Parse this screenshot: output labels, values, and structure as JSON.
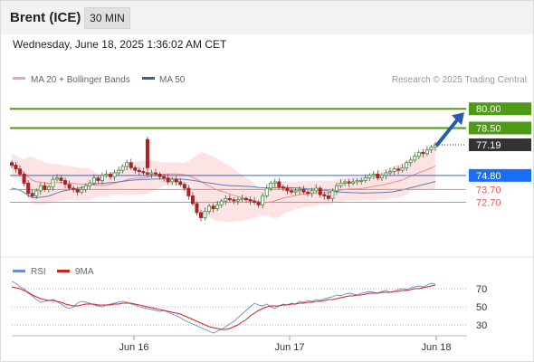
{
  "header": {
    "title": "Brent (ICE)",
    "timeframe": "30 MIN",
    "datetime": "Wednesday, June 18, 2025 1:36:02 AM CET"
  },
  "legend": {
    "ma20": "MA 20 + Bollinger Bands",
    "ma50": "MA 50",
    "source": "Research © 2025 Trading Central"
  },
  "rsi_legend": {
    "rsi": "RSI",
    "ma9": "9MA"
  },
  "colors": {
    "resistance": "#4f9a16",
    "current": "#333333",
    "pivot": "#1a6ef5",
    "support": "#f08080",
    "bull": "#3a8f3a",
    "bear": "#b02020",
    "ma50": "#5b7fb5",
    "rsi": "#6a8fd0",
    "rsi_ma": "#d42020",
    "arrow": "#2b5ba8"
  },
  "chart_data": [
    {
      "type": "candlestick",
      "title": "Brent (ICE)",
      "timeframe": "30 MIN",
      "x_ticks": [
        "Jun 16",
        "Jun 17",
        "Jun 18"
      ],
      "ylim": [
        68.5,
        81.5
      ],
      "levels": [
        {
          "value": 80.0,
          "label": "80.00",
          "kind": "resistance"
        },
        {
          "value": 78.5,
          "label": "78.50",
          "kind": "resistance"
        },
        {
          "value": 77.19,
          "label": "77.19",
          "kind": "current"
        },
        {
          "value": 74.8,
          "label": "74.80",
          "kind": "pivot"
        },
        {
          "value": 73.7,
          "label": "73.70",
          "kind": "support"
        },
        {
          "value": 72.7,
          "label": "72.70",
          "kind": "support"
        }
      ],
      "series": [
        {
          "name": "MA 20 + Bollinger Bands"
        },
        {
          "name": "MA 50"
        }
      ],
      "closes": [
        75.6,
        75.3,
        74.9,
        74.2,
        73.4,
        73.2,
        73.6,
        74.0,
        73.7,
        73.9,
        74.5,
        74.6,
        74.4,
        74.1,
        73.8,
        73.7,
        73.5,
        73.7,
        74.0,
        74.2,
        74.6,
        74.4,
        74.8,
        74.9,
        74.7,
        75.0,
        75.2,
        75.5,
        75.8,
        75.4,
        75.2,
        75.1,
        75.0,
        74.9,
        75.0,
        74.9,
        74.7,
        74.6,
        74.3,
        74.5,
        74.3,
        74.1,
        73.8,
        73.2,
        72.6,
        71.9,
        71.5,
        72.0,
        72.4,
        72.2,
        72.5,
        72.8,
        73.0,
        72.9,
        72.8,
        72.9,
        73.0,
        72.9,
        72.8,
        72.7,
        72.5,
        73.2,
        73.8,
        74.2,
        74.3,
        73.9,
        73.8,
        73.6,
        73.5,
        73.6,
        73.7,
        73.5,
        73.4,
        73.6,
        73.8,
        73.3,
        73.2,
        73.0,
        73.6,
        74.0,
        74.2,
        74.3,
        74.2,
        74.3,
        74.4,
        74.4,
        74.6,
        74.8,
        74.9,
        74.6,
        74.8,
        75.0,
        75.1,
        75.3,
        75.2,
        75.4,
        75.8,
        76.0,
        76.3,
        76.6,
        76.5,
        76.8,
        77.0,
        77.19
      ]
    },
    {
      "type": "line",
      "title": "RSI",
      "series": [
        {
          "name": "RSI"
        },
        {
          "name": "9MA"
        }
      ],
      "levels": [
        70,
        50,
        30
      ],
      "ylim": [
        20,
        80
      ],
      "rsi": [
        78,
        76,
        72,
        70,
        65,
        62,
        58,
        55,
        56,
        57,
        58,
        56,
        53,
        50,
        48,
        50,
        54,
        56,
        55,
        54,
        52,
        51,
        50,
        52,
        53,
        54,
        55,
        56,
        55,
        53,
        52,
        50,
        49,
        48,
        47,
        46,
        45,
        46,
        44,
        42,
        40,
        38,
        35,
        33,
        31,
        29,
        27,
        25,
        23,
        21,
        23,
        25,
        28,
        31,
        34,
        38,
        42,
        46,
        50,
        54,
        52,
        51,
        53,
        50,
        48,
        51,
        53,
        52,
        54,
        53,
        56,
        55,
        57,
        56,
        58,
        57,
        59,
        60,
        61,
        63,
        62,
        64,
        65,
        64,
        63,
        65,
        66,
        67,
        66,
        65,
        67,
        68,
        66,
        67,
        69,
        70,
        69,
        71,
        72,
        73,
        72,
        74,
        76,
        75
      ],
      "ma": [
        72,
        71,
        70,
        68,
        66,
        63,
        61,
        59,
        58,
        57,
        57,
        56,
        55,
        53,
        52,
        51,
        51,
        52,
        53,
        53,
        53,
        52,
        52,
        52,
        52,
        53,
        53,
        54,
        54,
        54,
        53,
        52,
        51,
        50,
        49,
        48,
        47,
        46,
        45,
        44,
        43,
        42,
        40,
        38,
        36,
        34,
        32,
        30,
        28,
        27,
        26,
        25,
        25,
        26,
        28,
        30,
        33,
        36,
        40,
        43,
        46,
        48,
        50,
        51,
        51,
        51,
        52,
        52,
        53,
        53,
        54,
        54,
        55,
        55,
        56,
        56,
        57,
        58,
        58,
        59,
        60,
        61,
        62,
        62,
        63,
        63,
        64,
        65,
        65,
        65,
        66,
        66,
        66,
        67,
        67,
        68,
        68,
        69,
        70,
        70,
        71,
        72,
        73,
        74
      ]
    }
  ]
}
